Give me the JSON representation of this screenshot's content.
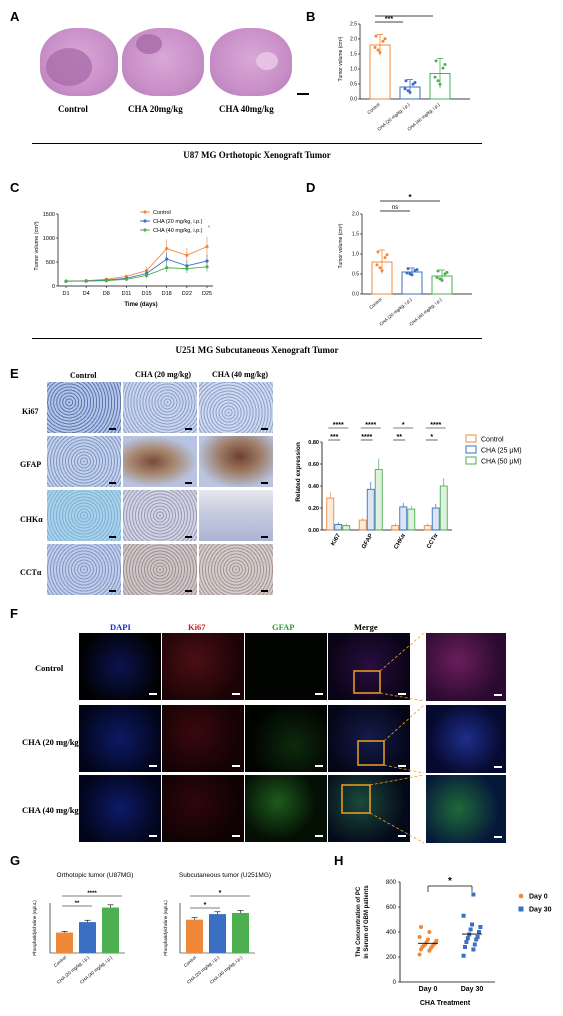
{
  "panels": {
    "A": "A",
    "B": "B",
    "C": "C",
    "D": "D",
    "E": "E",
    "F": "F",
    "G": "G",
    "H": "H"
  },
  "panelA": {
    "labels": [
      "Control",
      "CHA 20mg/kg",
      "CHA 40mg/kg"
    ]
  },
  "caption_u87": "U87 MG Orthotopic Xenograft Tumor",
  "caption_u251": "U251 MG Subcutaneous Xenograft Tumor",
  "panelB": {
    "ylabel": "Tumor volume (cm³)",
    "yticks": [
      "0.0",
      "0.5",
      "1.0",
      "1.5",
      "2.0",
      "2.5"
    ],
    "xticks": [
      "Control",
      "CHA (20 mg/kg, i.p.)",
      "CHA (40 mg/kg, i.p.)"
    ],
    "sig1": "***",
    "sig2": "*"
  },
  "panelC": {
    "ylabel": "Tumor volume (cm³)",
    "xlabel": "Time (days)",
    "yticks": [
      "0",
      "500",
      "1000",
      "1500"
    ],
    "xticks": [
      "D1",
      "D4",
      "D8",
      "D11",
      "D15",
      "D18",
      "D22",
      "D25"
    ],
    "legend": [
      "Control",
      "CHA (20 mg/kg, i.p.)",
      "CHA (40 mg/kg, i.p.)"
    ],
    "sig": "*"
  },
  "panelD": {
    "ylabel": "Tumor volume (cm³)",
    "yticks": [
      "0.0",
      "0.5",
      "1.0",
      "1.5",
      "2.0"
    ],
    "xticks": [
      "Control",
      "CHA (20 mg/kg, i.p.)",
      "CHA (40 mg/kg, i.p.)"
    ],
    "sig1": "ns",
    "sig2": "*"
  },
  "panelE": {
    "cols": [
      "Control",
      "CHA (20 mg/kg)",
      "CHA (40 mg/kg)"
    ],
    "rows": [
      "Ki67",
      "GFAP",
      "CHKα",
      "CCTα"
    ],
    "chart_ylabel": "Related expression",
    "chart_yticks": [
      "0.00",
      "0.20",
      "0.40",
      "0.60",
      "0.80"
    ],
    "chart_xticks": [
      "Ki67",
      "GFAP",
      "CHKα",
      "CCTα"
    ],
    "legend": [
      "Control",
      "CHA (25 μM)",
      "CHA (50 μM)"
    ],
    "sig_top": [
      "****",
      "****",
      "*",
      "****"
    ],
    "sig_bot": [
      "***",
      "****",
      "**",
      "*"
    ]
  },
  "panelF": {
    "cols": [
      "DAPI",
      "Ki67",
      "GFAP",
      "Merge"
    ],
    "rows": [
      "Control",
      "CHA (20 mg/kg)",
      "CHA (40 mg/kg)"
    ]
  },
  "panelG": {
    "left_title": "Orthotopic tumor (U87MG)",
    "right_title": "Subcutaneous tumor (U251MG)",
    "ylabel": "Phosphatidylcholine (ng/uL)",
    "xticks": [
      "Control",
      "CHA (20 mg/kg, i.p.)",
      "CHA (40 mg/kg, i.p.)"
    ],
    "left_sig1": "**",
    "left_sig2": "****",
    "right_sig1": "*",
    "right_sig2": "*"
  },
  "panelH": {
    "ylabel1": "The Concentration of PC",
    "ylabel2": "in Serum of GBM patients",
    "yticks": [
      "0",
      "200",
      "400",
      "600",
      "800"
    ],
    "xticks": [
      "Day 0",
      "Day 30"
    ],
    "xlabel": "CHA Treatment",
    "legend": [
      "Day 0",
      "Day 30"
    ],
    "sig": "*"
  },
  "chart_data": [
    {
      "type": "bar",
      "panel": "B",
      "categories": [
        "Control",
        "CHA (20 mg/kg, i.p.)",
        "CHA (40 mg/kg, i.p.)"
      ],
      "values": [
        1.8,
        0.4,
        0.85
      ],
      "errors": [
        0.35,
        0.25,
        0.5
      ],
      "ylim": [
        0,
        2.5
      ],
      "colors": [
        "#f0883a",
        "#3b6fc2",
        "#4caf50"
      ]
    },
    {
      "type": "line",
      "panel": "C",
      "x": [
        "D1",
        "D4",
        "D8",
        "D11",
        "D15",
        "D18",
        "D22",
        "D25"
      ],
      "series": [
        {
          "name": "Control",
          "values": [
            100,
            110,
            140,
            200,
            320,
            780,
            640,
            820
          ],
          "color": "#f0883a"
        },
        {
          "name": "CHA (20 mg/kg, i.p.)",
          "values": [
            100,
            105,
            120,
            160,
            260,
            560,
            420,
            520
          ],
          "color": "#3b6fc2"
        },
        {
          "name": "CHA (40 mg/kg, i.p.)",
          "values": [
            100,
            100,
            110,
            140,
            220,
            380,
            360,
            400
          ],
          "color": "#4caf50"
        }
      ],
      "ylim": [
        0,
        1500
      ]
    },
    {
      "type": "bar",
      "panel": "D",
      "categories": [
        "Control",
        "CHA (20 mg/kg, i.p.)",
        "CHA (40 mg/kg, i.p.)"
      ],
      "values": [
        0.8,
        0.55,
        0.45
      ],
      "errors": [
        0.3,
        0.1,
        0.15
      ],
      "ylim": [
        0,
        2.0
      ],
      "colors": [
        "#f0883a",
        "#3b6fc2",
        "#4caf50"
      ]
    },
    {
      "type": "bar",
      "panel": "E",
      "categories": [
        "Ki67",
        "GFAP",
        "CHKα",
        "CCTα"
      ],
      "series": [
        {
          "name": "Control",
          "values": [
            0.29,
            0.09,
            0.04,
            0.04
          ],
          "color": "#f0883a"
        },
        {
          "name": "CHA (25 μM)",
          "values": [
            0.05,
            0.37,
            0.21,
            0.2
          ],
          "color": "#3b6fc2"
        },
        {
          "name": "CHA (50 μM)",
          "values": [
            0.04,
            0.55,
            0.19,
            0.4
          ],
          "color": "#4caf50"
        }
      ],
      "ylim": [
        0,
        0.8
      ]
    },
    {
      "type": "bar",
      "panel": "G-left",
      "categories": [
        "Control",
        "CHA (20 mg/kg, i.p.)",
        "CHA (40 mg/kg, i.p.)"
      ],
      "values": [
        45,
        68,
        100
      ],
      "colors": [
        "#f0883a",
        "#3b6fc2",
        "#4caf50"
      ]
    },
    {
      "type": "bar",
      "panel": "G-right",
      "categories": [
        "Control",
        "CHA (20 mg/kg, i.p.)",
        "CHA (40 mg/kg, i.p.)"
      ],
      "values": [
        60,
        70,
        72
      ],
      "colors": [
        "#f0883a",
        "#3b6fc2",
        "#4caf50"
      ]
    },
    {
      "type": "scatter",
      "panel": "H",
      "categories": [
        "Day 0",
        "Day 30"
      ],
      "series": [
        {
          "name": "Day 0",
          "values": [
            220,
            250,
            260,
            270,
            280,
            285,
            290,
            300,
            300,
            310,
            320,
            330,
            340,
            360,
            400,
            440
          ],
          "color": "#f0883a"
        },
        {
          "name": "Day 30",
          "values": [
            210,
            260,
            280,
            300,
            320,
            340,
            350,
            360,
            380,
            400,
            420,
            440,
            460,
            530,
            700
          ],
          "color": "#3b6fc2"
        }
      ],
      "ylim": [
        0,
        800
      ]
    }
  ]
}
